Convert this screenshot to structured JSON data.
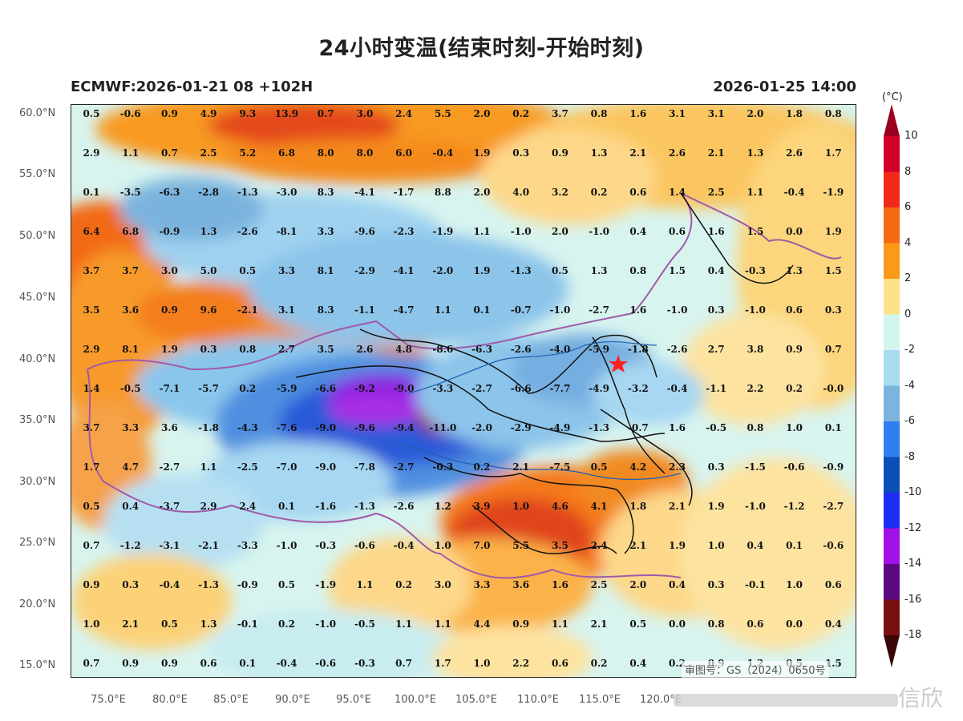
{
  "title": "24小时变温(结束时刻-开始时刻)",
  "subtitle_left": "ECMWF:2026-01-21 08 +102H",
  "subtitle_right": "2026-01-25 14:00",
  "lat_labels": [
    "60.0°N",
    "55.0°N",
    "50.0°N",
    "45.0°N",
    "40.0°N",
    "35.0°N",
    "30.0°N",
    "25.0°N",
    "20.0°N",
    "15.0°N"
  ],
  "lon_labels": [
    "75.0°E",
    "80.0°E",
    "85.0°E",
    "90.0°E",
    "95.0°E",
    "100.0°E",
    "105.0°E",
    "110.0°E",
    "115.0°E",
    "120.0°E"
  ],
  "grid_values": [
    [
      "0.5",
      "-0.6",
      "0.9",
      "4.9",
      "9.3",
      "13.9",
      "0.7",
      "3.0",
      "2.4",
      "5.5",
      "2.0",
      "0.2",
      "3.7",
      "0.8",
      "1.6",
      "3.1",
      "3.1",
      "2.0",
      "1.8",
      "0.8"
    ],
    [
      "2.9",
      "1.1",
      "0.7",
      "2.5",
      "5.2",
      "6.8",
      "8.0",
      "8.0",
      "6.0",
      "-0.4",
      "1.9",
      "0.3",
      "0.9",
      "1.3",
      "2.1",
      "2.6",
      "2.1",
      "1.3",
      "2.6",
      "1.7"
    ],
    [
      "0.1",
      "-3.5",
      "-6.3",
      "-2.8",
      "-1.3",
      "-3.0",
      "8.3",
      "-4.1",
      "-1.7",
      "8.8",
      "2.0",
      "4.0",
      "3.2",
      "0.2",
      "0.6",
      "1.4",
      "2.5",
      "1.1",
      "-0.4",
      "-1.9"
    ],
    [
      "6.4",
      "6.8",
      "-0.9",
      "1.3",
      "-2.6",
      "-8.1",
      "3.3",
      "-9.6",
      "-2.3",
      "-1.9",
      "1.1",
      "-1.0",
      "2.0",
      "-1.0",
      "0.4",
      "0.6",
      "1.6",
      "1.5",
      "0.0",
      "1.9"
    ],
    [
      "3.7",
      "3.7",
      "3.0",
      "5.0",
      "0.5",
      "3.3",
      "8.1",
      "-2.9",
      "-4.1",
      "-2.0",
      "1.9",
      "-1.3",
      "0.5",
      "1.3",
      "0.8",
      "1.5",
      "0.4",
      "-0.3",
      "1.3",
      "1.5"
    ],
    [
      "3.5",
      "3.6",
      "0.9",
      "9.6",
      "-2.1",
      "3.1",
      "8.3",
      "-1.1",
      "-4.7",
      "1.1",
      "0.1",
      "-0.7",
      "-1.0",
      "-2.7",
      "1.6",
      "-1.0",
      "0.3",
      "-1.0",
      "0.6",
      "0.3"
    ],
    [
      "2.9",
      "8.1",
      "1.9",
      "0.3",
      "0.8",
      "2.7",
      "3.5",
      "2.6",
      "4.8",
      "-8.6",
      "-6.3",
      "-2.6",
      "-4.0",
      "-5.9",
      "-1.8",
      "-2.6",
      "2.7",
      "3.8",
      "0.9",
      "0.7"
    ],
    [
      "1.4",
      "-0.5",
      "-7.1",
      "-5.7",
      "0.2",
      "-5.9",
      "-6.6",
      "-9.2",
      "-9.0",
      "-3.3",
      "-2.7",
      "-6.6",
      "-7.7",
      "-4.9",
      "-3.2",
      "-0.4",
      "-1.1",
      "2.2",
      "0.2",
      "-0.0"
    ],
    [
      "3.7",
      "3.3",
      "3.6",
      "-1.8",
      "-4.3",
      "-7.6",
      "-9.0",
      "-9.6",
      "-9.4",
      "-11.0",
      "-2.0",
      "-2.9",
      "-4.9",
      "-1.3",
      "-0.7",
      "1.6",
      "-0.5",
      "0.8",
      "1.0",
      "0.1"
    ],
    [
      "1.7",
      "4.7",
      "-2.7",
      "1.1",
      "-2.5",
      "-7.0",
      "-9.0",
      "-7.8",
      "-2.7",
      "-0.3",
      "0.2",
      "2.1",
      "-7.5",
      "0.5",
      "4.2",
      "2.3",
      "0.3",
      "-1.5",
      "-0.6",
      "-0.9"
    ],
    [
      "0.5",
      "0.4",
      "-3.7",
      "2.9",
      "2.4",
      "0.1",
      "-1.6",
      "-1.3",
      "-2.6",
      "1.2",
      "3.9",
      "1.0",
      "4.6",
      "4.1",
      "1.8",
      "2.1",
      "1.9",
      "-1.0",
      "-1.2",
      "-2.7"
    ],
    [
      "0.7",
      "-1.2",
      "-3.1",
      "-2.1",
      "-3.3",
      "-1.0",
      "-0.3",
      "-0.6",
      "-0.4",
      "1.0",
      "7.0",
      "5.5",
      "3.5",
      "2.4",
      "2.1",
      "1.9",
      "1.0",
      "0.4",
      "0.1",
      "-0.6"
    ],
    [
      "0.9",
      "0.3",
      "-0.4",
      "-1.3",
      "-0.9",
      "0.5",
      "-1.9",
      "1.1",
      "0.2",
      "3.0",
      "3.3",
      "3.6",
      "1.6",
      "2.5",
      "2.0",
      "0.4",
      "0.3",
      "-0.1",
      "1.0",
      "0.6"
    ],
    [
      "1.0",
      "2.1",
      "0.5",
      "1.3",
      "-0.1",
      "0.2",
      "-1.0",
      "-0.5",
      "1.1",
      "1.1",
      "4.4",
      "0.9",
      "1.1",
      "2.1",
      "0.5",
      "0.0",
      "0.8",
      "0.6",
      "0.0",
      "0.4"
    ],
    [
      "0.7",
      "0.9",
      "0.9",
      "0.6",
      "0.1",
      "-0.4",
      "-0.6",
      "-0.3",
      "0.7",
      "1.7",
      "1.0",
      "2.2",
      "0.6",
      "0.2",
      "0.4",
      "0.2",
      "0.9",
      "1.2",
      "0.5",
      "1.5"
    ]
  ],
  "colorbar": {
    "unit": "(°C)",
    "labels": [
      "10",
      "8",
      "6",
      "4",
      "2",
      "0",
      "-2",
      "-4",
      "-6",
      "-8",
      "-10",
      "-12",
      "-14",
      "-16",
      "-18"
    ],
    "colors": [
      "#9b0020",
      "#d1002a",
      "#f02a18",
      "#f56a10",
      "#fb9a18",
      "#fde08a",
      "#d2f5ee",
      "#a6dcf2",
      "#7cb4de",
      "#2f7dee",
      "#0b4fb6",
      "#1e2cf4",
      "#a112e6",
      "#5a0a80",
      "#7a0f0f",
      "#3b0606"
    ]
  },
  "watermark": "审图号：GS（2024）0650号",
  "brand_text": "信欣",
  "star_color": "#ff2020"
}
